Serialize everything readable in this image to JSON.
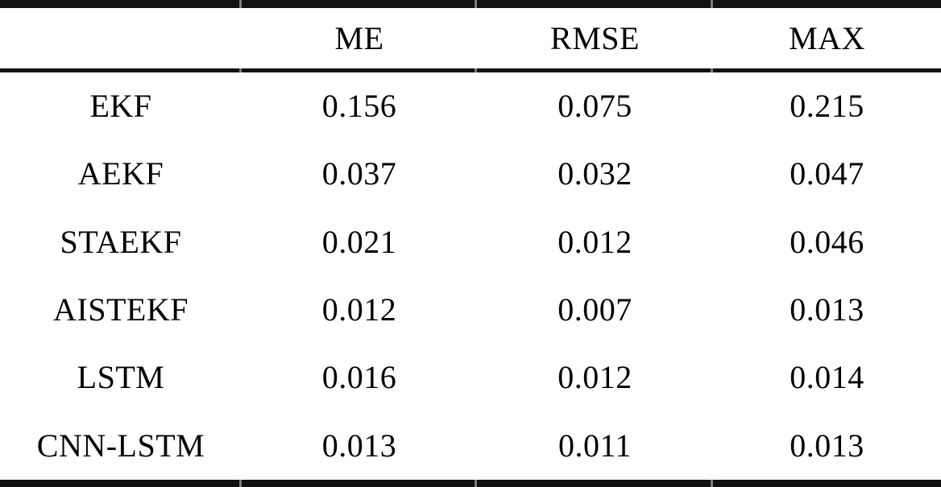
{
  "accent_colors": {
    "text": "#000000",
    "rule": "#111111",
    "background": "#ffffff"
  },
  "table": {
    "columns": [
      "",
      "ME",
      "RMSE",
      "MAX"
    ],
    "rows": [
      {
        "label": "EKF",
        "values": [
          "0.156",
          "0.075",
          "0.215"
        ]
      },
      {
        "label": "AEKF",
        "values": [
          "0.037",
          "0.032",
          "0.047"
        ]
      },
      {
        "label": "STAEKF",
        "values": [
          "0.021",
          "0.012",
          "0.046"
        ]
      },
      {
        "label": "AISTEKF",
        "values": [
          "0.012",
          "0.007",
          "0.013"
        ]
      },
      {
        "label": "LSTM",
        "values": [
          "0.016",
          "0.012",
          "0.014"
        ]
      },
      {
        "label": "CNN-LSTM",
        "values": [
          "0.013",
          "0.011",
          "0.013"
        ]
      }
    ]
  },
  "chart_data": {
    "type": "table",
    "title": "",
    "columns": [
      "",
      "ME",
      "RMSE",
      "MAX"
    ],
    "row_labels": [
      "EKF",
      "AEKF",
      "STAEKF",
      "AISTEKF",
      "LSTM",
      "CNN-LSTM"
    ],
    "series": [
      {
        "name": "ME",
        "values": [
          0.156,
          0.037,
          0.021,
          0.012,
          0.016,
          0.013
        ]
      },
      {
        "name": "RMSE",
        "values": [
          0.075,
          0.032,
          0.012,
          0.007,
          0.012,
          0.011
        ]
      },
      {
        "name": "MAX",
        "values": [
          0.215,
          0.047,
          0.046,
          0.013,
          0.014,
          0.013
        ]
      }
    ]
  }
}
